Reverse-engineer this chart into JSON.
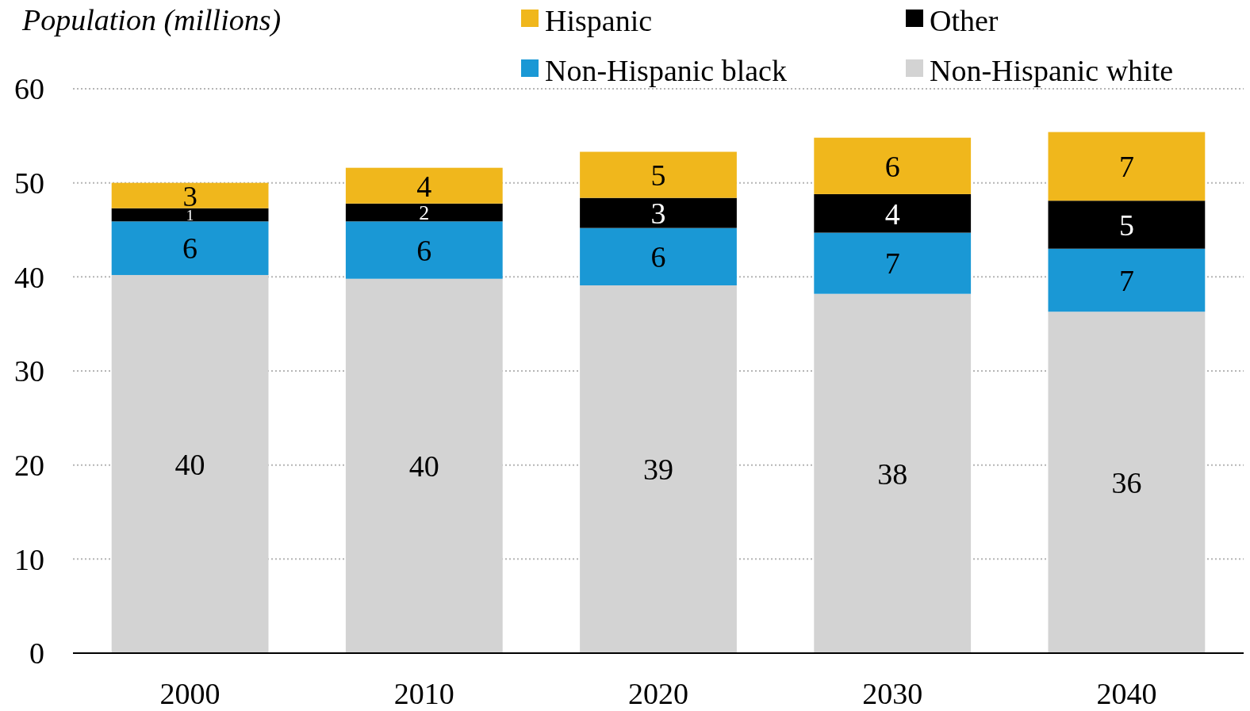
{
  "chart_data": {
    "type": "bar",
    "stacked": true,
    "ylabel": "Population (millions)",
    "categories": [
      "2000",
      "2010",
      "2020",
      "2030",
      "2040"
    ],
    "series": [
      {
        "name": "Non-Hispanic white",
        "color": "#d3d3d3",
        "values": [
          40.2,
          39.8,
          39.1,
          38.2,
          36.3
        ],
        "value_labels": [
          "40",
          "40",
          "39",
          "38",
          "36"
        ]
      },
      {
        "name": "Non-Hispanic black",
        "color": "#1a98d5",
        "values": [
          5.7,
          6.1,
          6.1,
          6.5,
          6.7
        ],
        "value_labels": [
          "6",
          "6",
          "6",
          "7",
          "7"
        ]
      },
      {
        "name": "Other",
        "color": "#000000",
        "values": [
          1.4,
          1.9,
          3.2,
          4.1,
          5.1
        ],
        "value_labels": [
          "1",
          "2",
          "3",
          "4",
          "5"
        ]
      },
      {
        "name": "Hispanic",
        "color": "#f0b71c",
        "values": [
          2.7,
          3.8,
          4.9,
          6.0,
          7.3
        ],
        "value_labels": [
          "3",
          "4",
          "5",
          "6",
          "7"
        ]
      }
    ],
    "ylim": [
      0,
      60
    ],
    "yticks": [
      0,
      10,
      20,
      30,
      40,
      50,
      60
    ],
    "grid": "y",
    "legend": "top"
  }
}
